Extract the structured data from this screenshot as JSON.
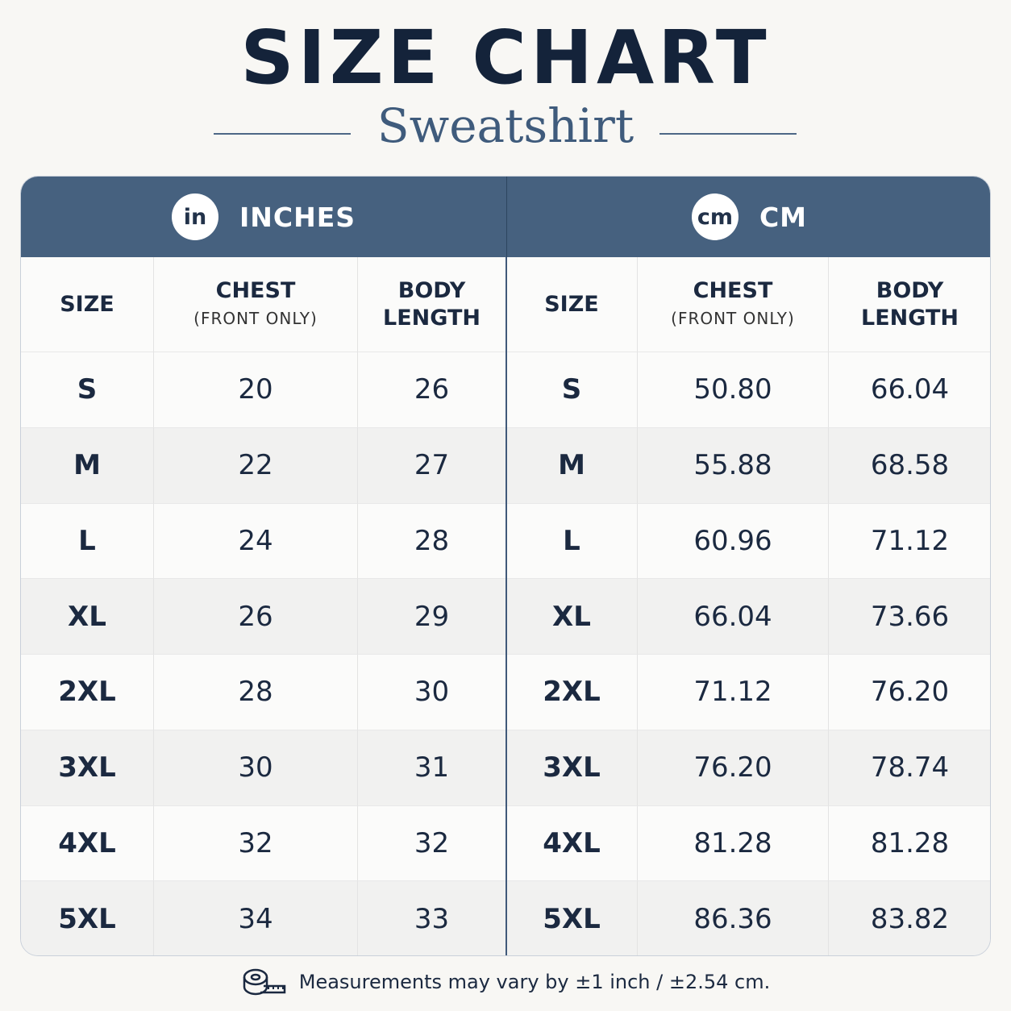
{
  "title": "SIZE CHART",
  "subtitle": "Sweatshirt",
  "panels": [
    {
      "unit_badge": "in",
      "unit_label": "INCHES",
      "columns": [
        {
          "label": "SIZE"
        },
        {
          "label": "CHEST",
          "note": "(FRONT ONLY)"
        },
        {
          "label": "BODY LENGTH"
        }
      ],
      "rows": [
        [
          "S",
          "20",
          "26"
        ],
        [
          "M",
          "22",
          "27"
        ],
        [
          "L",
          "24",
          "28"
        ],
        [
          "XL",
          "26",
          "29"
        ],
        [
          "2XL",
          "28",
          "30"
        ],
        [
          "3XL",
          "30",
          "31"
        ],
        [
          "4XL",
          "32",
          "32"
        ],
        [
          "5XL",
          "34",
          "33"
        ]
      ]
    },
    {
      "unit_badge": "cm",
      "unit_label": "CM",
      "columns": [
        {
          "label": "SIZE"
        },
        {
          "label": "CHEST",
          "note": "(FRONT ONLY)"
        },
        {
          "label": "BODY LENGTH"
        }
      ],
      "rows": [
        [
          "S",
          "50.80",
          "66.04"
        ],
        [
          "M",
          "55.88",
          "68.58"
        ],
        [
          "L",
          "60.96",
          "71.12"
        ],
        [
          "XL",
          "66.04",
          "73.66"
        ],
        [
          "2XL",
          "71.12",
          "76.20"
        ],
        [
          "3XL",
          "76.20",
          "78.74"
        ],
        [
          "4XL",
          "81.28",
          "81.28"
        ],
        [
          "5XL",
          "86.36",
          "83.82"
        ]
      ]
    }
  ],
  "footnote": "Measurements may vary by ±1 inch / ±2.54 cm."
}
